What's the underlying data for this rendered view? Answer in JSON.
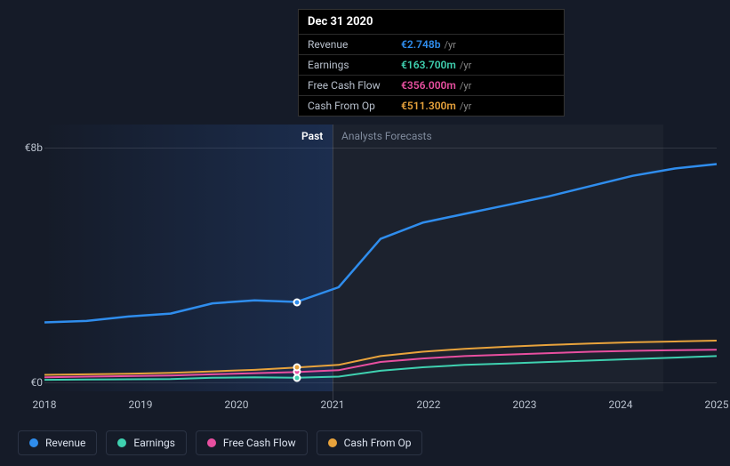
{
  "chart": {
    "type": "line",
    "background_color": "#151b28",
    "grid_color": "rgba(255,255,255,0.12)",
    "past_gradient": "rgba(40,80,150,0.35)",
    "forecast_shade": "rgba(255,255,255,0.03)",
    "section_labels": {
      "past": "Past",
      "forecast": "Analysts Forecasts"
    },
    "section_label_colors": {
      "past": "#ffffff",
      "forecast": "#7f8a9c"
    },
    "x": {
      "ticks": [
        "2018",
        "2019",
        "2020",
        "2021",
        "2022",
        "2023",
        "2024",
        "2025"
      ],
      "split_index": 3,
      "fontsize": 12,
      "color": "#b8c0cc"
    },
    "y": {
      "ticks": [
        {
          "value": 0,
          "label": "€0"
        },
        {
          "value": 8000,
          "label": "€8b"
        }
      ],
      "min": -300,
      "max": 8800,
      "fontsize": 12,
      "color": "#b8c0cc"
    },
    "series": [
      {
        "name": "Revenue",
        "color": "#2f8ded",
        "stroke_width": 2.5,
        "values": [
          2050,
          2100,
          2250,
          2350,
          2700,
          2800,
          2748,
          3250,
          4900,
          5450,
          5750,
          6050,
          6350,
          6700,
          7050,
          7300,
          7450
        ]
      },
      {
        "name": "Earnings",
        "color": "#3fd1b0",
        "stroke_width": 2,
        "values": [
          90,
          100,
          110,
          120,
          160,
          180,
          163.7,
          200,
          400,
          520,
          600,
          650,
          700,
          750,
          800,
          850,
          900
        ]
      },
      {
        "name": "Free Cash Flow",
        "color": "#e84fa0",
        "stroke_width": 2,
        "values": [
          180,
          200,
          220,
          240,
          280,
          320,
          356.0,
          420,
          700,
          820,
          900,
          950,
          1000,
          1050,
          1080,
          1100,
          1120
        ]
      },
      {
        "name": "Cash From Op",
        "color": "#e8a33c",
        "stroke_width": 2,
        "values": [
          260,
          280,
          300,
          330,
          380,
          430,
          511.3,
          600,
          900,
          1050,
          1150,
          1220,
          1280,
          1330,
          1370,
          1400,
          1430
        ]
      }
    ],
    "hover_index": 6,
    "marker_border": "#ffffff",
    "marker_size": 9
  },
  "tooltip": {
    "date": "Dec 31 2020",
    "unit": "/yr",
    "rows": [
      {
        "label": "Revenue",
        "value": "€2.748b",
        "color": "#2f8ded"
      },
      {
        "label": "Earnings",
        "value": "€163.700m",
        "color": "#3fd1b0"
      },
      {
        "label": "Free Cash Flow",
        "value": "€356.000m",
        "color": "#e84fa0"
      },
      {
        "label": "Cash From Op",
        "value": "€511.300m",
        "color": "#e8a33c"
      }
    ]
  },
  "legend": {
    "items": [
      {
        "label": "Revenue",
        "color": "#2f8ded"
      },
      {
        "label": "Earnings",
        "color": "#3fd1b0"
      },
      {
        "label": "Free Cash Flow",
        "color": "#e84fa0"
      },
      {
        "label": "Cash From Op",
        "color": "#e8a33c"
      }
    ],
    "border_color": "#2b3344",
    "text_color": "#dbe2ee",
    "fontsize": 12
  }
}
